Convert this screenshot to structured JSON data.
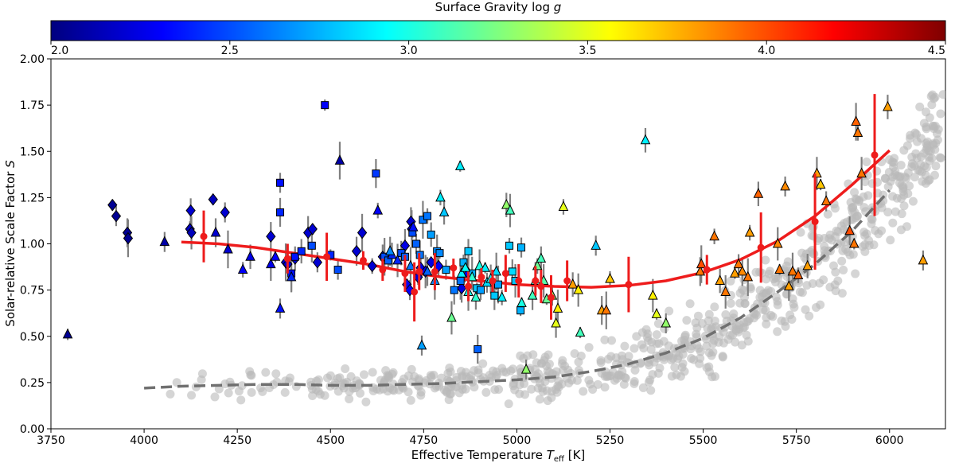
{
  "chart_data": {
    "type": "scatter",
    "xlabel": "Effective Temperature T_eff [K]",
    "ylabel": "Solar-relative Scale Factor S",
    "colorbar_label": "Surface Gravity log g",
    "xlim": [
      3750,
      6150
    ],
    "ylim": [
      0.0,
      2.0
    ],
    "clim": [
      2.0,
      4.5
    ],
    "x_ticks": [
      3750,
      4000,
      4250,
      4500,
      4750,
      5000,
      5250,
      5500,
      5750,
      6000
    ],
    "y_ticks": [
      0.0,
      0.25,
      0.5,
      0.75,
      1.0,
      1.25,
      1.5,
      1.75,
      2.0
    ],
    "c_ticks": [
      2.0,
      2.5,
      3.0,
      3.5,
      4.0,
      4.5
    ],
    "x_tick_labels": [
      "3750",
      "4000",
      "4250",
      "4500",
      "4750",
      "5000",
      "5250",
      "5500",
      "5750",
      "6000"
    ],
    "y_tick_labels": [
      "0.00",
      "0.25",
      "0.50",
      "0.75",
      "1.00",
      "1.25",
      "1.50",
      "1.75",
      "2.00"
    ],
    "c_tick_labels": [
      "2.0",
      "2.5",
      "3.0",
      "3.5",
      "4.0",
      "4.5"
    ],
    "label_parts": {
      "x_main": "Effective Temperature ",
      "x_sym": "T",
      "x_sub": "eff",
      "x_unit": " [K]",
      "y_main": "Solar-relative Scale Factor ",
      "y_sym": "S",
      "c_main": "Surface Gravity log ",
      "c_sym": "g"
    },
    "colors": {
      "fit": "#ee1c1c",
      "binned": "#ee1c1c",
      "background": "#b9b9b9",
      "background_fit": "#707070",
      "errorbar": "#7f7f7f",
      "colormap": [
        "#00007f",
        "#0000ff",
        "#007fff",
        "#00ffff",
        "#7fff7f",
        "#ffff00",
        "#ff7f00",
        "#ff0000",
        "#7f0000"
      ]
    },
    "series": [
      {
        "name": "diamonds",
        "marker": "diamond",
        "points": [
          [
            3915,
            1.21,
            2.05
          ],
          [
            3925,
            1.15,
            2.05
          ],
          [
            3955,
            1.06,
            2.05
          ],
          [
            3957,
            1.03,
            2.05
          ],
          [
            4123,
            1.08,
            2.15
          ],
          [
            4125,
            1.18,
            2.2
          ],
          [
            4127,
            1.06,
            2.15
          ],
          [
            4185,
            1.24,
            2.15
          ],
          [
            4217,
            1.17,
            2.2
          ],
          [
            4340,
            1.04,
            2.2
          ],
          [
            4380,
            0.9,
            2.2
          ],
          [
            4385,
            0.89,
            2.2
          ],
          [
            4405,
            0.92,
            2.2
          ],
          [
            4440,
            1.06,
            2.2
          ],
          [
            4452,
            1.08,
            2.2
          ],
          [
            4465,
            0.9,
            2.2
          ],
          [
            4570,
            0.96,
            2.2
          ],
          [
            4585,
            1.06,
            2.2
          ],
          [
            4612,
            0.88,
            2.2
          ],
          [
            4640,
            0.93,
            2.2
          ],
          [
            4700,
            0.99,
            2.25
          ],
          [
            4705,
            0.78,
            2.3
          ],
          [
            4713,
            0.75,
            2.3
          ],
          [
            4716,
            1.12,
            2.2
          ],
          [
            4718,
            1.08,
            2.2
          ],
          [
            4735,
            0.82,
            2.2
          ],
          [
            4742,
            0.87,
            2.25
          ],
          [
            4755,
            0.85,
            2.25
          ],
          [
            4770,
            0.9,
            2.25
          ],
          [
            4790,
            0.88,
            2.3
          ],
          [
            4852,
            0.76,
            2.25
          ],
          [
            4870,
            0.84,
            2.3
          ]
        ]
      },
      {
        "name": "squares",
        "marker": "square",
        "points": [
          [
            4485,
            1.75,
            2.3
          ],
          [
            4365,
            1.33,
            2.35
          ],
          [
            4365,
            1.17,
            2.4
          ],
          [
            4395,
            0.84,
            2.35
          ],
          [
            4405,
            0.93,
            2.35
          ],
          [
            4422,
            0.96,
            2.4
          ],
          [
            4450,
            0.99,
            2.5
          ],
          [
            4500,
            0.94,
            2.4
          ],
          [
            4520,
            0.86,
            2.5
          ],
          [
            4622,
            1.38,
            2.45
          ],
          [
            4645,
            0.93,
            2.5
          ],
          [
            4655,
            0.91,
            2.55
          ],
          [
            4690,
            0.95,
            2.5
          ],
          [
            4700,
            0.93,
            2.55
          ],
          [
            4720,
            1.06,
            2.5
          ],
          [
            4730,
            1.0,
            2.55
          ],
          [
            4740,
            0.94,
            2.6
          ],
          [
            4748,
            1.13,
            2.6
          ],
          [
            4760,
            1.15,
            2.6
          ],
          [
            4770,
            1.05,
            2.7
          ],
          [
            4786,
            0.96,
            2.65
          ],
          [
            4793,
            0.95,
            2.65
          ],
          [
            4810,
            0.86,
            2.7
          ],
          [
            4832,
            0.75,
            2.6
          ],
          [
            4849,
            0.8,
            2.6
          ],
          [
            4857,
            0.9,
            2.75
          ],
          [
            4870,
            0.96,
            2.8
          ],
          [
            4880,
            0.84,
            2.75
          ],
          [
            4893,
            0.76,
            2.8
          ],
          [
            4903,
            0.75,
            2.7
          ],
          [
            4940,
            0.72,
            2.8
          ],
          [
            4950,
            0.78,
            2.7
          ],
          [
            4980,
            0.99,
            2.8
          ],
          [
            4988,
            0.85,
            2.85
          ],
          [
            4996,
            0.8,
            2.8
          ],
          [
            5010,
            0.64,
            2.75
          ],
          [
            5012,
            0.98,
            2.75
          ],
          [
            4895,
            0.43,
            2.55
          ]
        ]
      },
      {
        "name": "triangles",
        "marker": "triangle",
        "points": [
          [
            3795,
            0.51,
            2.05
          ],
          [
            4055,
            1.01,
            2.1
          ],
          [
            4192,
            1.06,
            2.2
          ],
          [
            4225,
            0.97,
            2.2
          ],
          [
            4265,
            0.86,
            2.3
          ],
          [
            4285,
            0.93,
            2.25
          ],
          [
            4340,
            0.89,
            2.25
          ],
          [
            4352,
            0.93,
            2.3
          ],
          [
            4365,
            0.65,
            2.35
          ],
          [
            4395,
            0.82,
            2.4
          ],
          [
            4525,
            1.45,
            2.1
          ],
          [
            4627,
            1.18,
            2.3
          ],
          [
            4665,
            0.94,
            2.4
          ],
          [
            4680,
            0.91,
            2.4
          ],
          [
            4722,
            1.09,
            2.35
          ],
          [
            4745,
            0.45,
            2.7
          ],
          [
            4760,
            0.85,
            2.55
          ],
          [
            4780,
            0.8,
            2.65
          ],
          [
            4795,
            1.25,
            2.9
          ],
          [
            4805,
            1.17,
            2.8
          ],
          [
            4825,
            0.6,
            3.2
          ],
          [
            4848,
            1.42,
            2.9
          ],
          [
            4852,
            0.84,
            2.9
          ],
          [
            4862,
            0.87,
            2.95
          ],
          [
            4870,
            0.74,
            3.0
          ],
          [
            4880,
            0.82,
            3.05
          ],
          [
            4890,
            0.71,
            3.05
          ],
          [
            4900,
            0.88,
            3.0
          ],
          [
            4915,
            0.87,
            2.9
          ],
          [
            4920,
            0.79,
            2.85
          ],
          [
            4930,
            0.81,
            2.95
          ],
          [
            4945,
            0.85,
            2.85
          ],
          [
            4960,
            0.71,
            2.9
          ],
          [
            4972,
            1.21,
            3.3
          ],
          [
            4982,
            1.18,
            3.1
          ],
          [
            5013,
            0.68,
            3.0
          ],
          [
            5025,
            0.32,
            3.3
          ],
          [
            5042,
            0.72,
            3.1
          ],
          [
            5050,
            0.8,
            3.0
          ],
          [
            5055,
            0.88,
            3.2
          ],
          [
            5065,
            0.92,
            3.1
          ],
          [
            5072,
            0.8,
            3.15
          ],
          [
            5080,
            0.7,
            3.2
          ],
          [
            5095,
            0.72,
            3.3
          ],
          [
            5105,
            0.57,
            3.5
          ],
          [
            5110,
            0.65,
            3.6
          ],
          [
            5125,
            1.2,
            3.5
          ],
          [
            5150,
            0.78,
            3.8
          ],
          [
            5165,
            0.75,
            3.6
          ],
          [
            5170,
            0.52,
            3.1
          ],
          [
            5212,
            0.99,
            2.8
          ],
          [
            5228,
            0.64,
            3.8
          ],
          [
            5240,
            0.64,
            3.9
          ],
          [
            5250,
            0.81,
            3.7
          ],
          [
            5345,
            1.56,
            2.9
          ],
          [
            5365,
            0.72,
            3.6
          ],
          [
            5375,
            0.62,
            3.5
          ],
          [
            5400,
            0.57,
            3.3
          ],
          [
            5492,
            0.85,
            3.9
          ],
          [
            5495,
            0.89,
            4.0
          ],
          [
            5530,
            1.04,
            3.9
          ],
          [
            5545,
            0.8,
            3.8
          ],
          [
            5560,
            0.74,
            3.9
          ],
          [
            5585,
            0.84,
            3.8
          ],
          [
            5595,
            0.89,
            3.9
          ],
          [
            5605,
            0.85,
            3.85
          ],
          [
            5620,
            0.82,
            3.9
          ],
          [
            5625,
            1.06,
            3.8
          ],
          [
            5648,
            1.27,
            3.95
          ],
          [
            5700,
            1.0,
            3.85
          ],
          [
            5705,
            0.86,
            3.9
          ],
          [
            5720,
            1.31,
            3.85
          ],
          [
            5730,
            0.77,
            3.8
          ],
          [
            5740,
            0.85,
            3.9
          ],
          [
            5755,
            0.83,
            3.95
          ],
          [
            5780,
            0.88,
            3.8
          ],
          [
            5805,
            1.38,
            3.8
          ],
          [
            5815,
            1.32,
            3.7
          ],
          [
            5830,
            1.23,
            3.9
          ],
          [
            5893,
            1.07,
            4.0
          ],
          [
            5910,
            1.66,
            3.95
          ],
          [
            5915,
            1.6,
            3.9
          ],
          [
            5995,
            1.74,
            3.8
          ],
          [
            5925,
            1.38,
            3.9
          ],
          [
            5905,
            1.0,
            3.9
          ],
          [
            6090,
            0.91,
            3.8
          ],
          [
            4660,
            0.96,
            2.65
          ],
          [
            4715,
            0.88,
            2.6
          ]
        ]
      }
    ],
    "binned_means": [
      {
        "x": 4160,
        "y": 1.04,
        "err": 0.14
      },
      {
        "x": 4385,
        "y": 0.92,
        "err": 0.08
      },
      {
        "x": 4490,
        "y": 0.93,
        "err": 0.13
      },
      {
        "x": 4588,
        "y": 0.91,
        "err": 0.05
      },
      {
        "x": 4640,
        "y": 0.86,
        "err": 0.06
      },
      {
        "x": 4700,
        "y": 0.84,
        "err": 0.1
      },
      {
        "x": 4725,
        "y": 0.74,
        "err": 0.16
      },
      {
        "x": 4738,
        "y": 0.85,
        "err": 0.1
      },
      {
        "x": 4780,
        "y": 0.85,
        "err": 0.1
      },
      {
        "x": 4830,
        "y": 0.87,
        "err": 0.05
      },
      {
        "x": 4870,
        "y": 0.77,
        "err": 0.08
      },
      {
        "x": 4905,
        "y": 0.82,
        "err": 0.05
      },
      {
        "x": 4935,
        "y": 0.8,
        "err": 0.06
      },
      {
        "x": 4970,
        "y": 0.84,
        "err": 0.1
      },
      {
        "x": 5005,
        "y": 0.8,
        "err": 0.09
      },
      {
        "x": 5050,
        "y": 0.8,
        "err": 0.08
      },
      {
        "x": 5065,
        "y": 0.77,
        "err": 0.09
      },
      {
        "x": 5092,
        "y": 0.71,
        "err": 0.12
      },
      {
        "x": 5135,
        "y": 0.8,
        "err": 0.11
      },
      {
        "x": 5300,
        "y": 0.78,
        "err": 0.15
      },
      {
        "x": 5510,
        "y": 0.86,
        "err": 0.08
      },
      {
        "x": 5655,
        "y": 0.98,
        "err": 0.19
      },
      {
        "x": 5800,
        "y": 1.12,
        "err": 0.26
      },
      {
        "x": 5960,
        "y": 1.48,
        "err": 0.33
      }
    ],
    "fit_curve": {
      "x": [
        4100,
        4200,
        4300,
        4400,
        4500,
        4600,
        4700,
        4800,
        4900,
        5000,
        5100,
        5200,
        5300,
        5400,
        5500,
        5600,
        5700,
        5800,
        5900,
        6000
      ],
      "y": [
        1.01,
        1.0,
        0.98,
        0.95,
        0.92,
        0.89,
        0.85,
        0.82,
        0.8,
        0.78,
        0.77,
        0.765,
        0.775,
        0.8,
        0.845,
        0.915,
        1.015,
        1.15,
        1.32,
        1.505
      ]
    },
    "background_fit_curve": {
      "x": [
        4000,
        4100,
        4200,
        4300,
        4400,
        4500,
        4600,
        4700,
        4800,
        4900,
        5000,
        5100,
        5200,
        5300,
        5400,
        5500,
        5600,
        5700,
        5800,
        5900,
        6000
      ],
      "y": [
        0.22,
        0.23,
        0.235,
        0.24,
        0.24,
        0.235,
        0.235,
        0.24,
        0.245,
        0.255,
        0.265,
        0.28,
        0.31,
        0.35,
        0.41,
        0.49,
        0.6,
        0.74,
        0.89,
        1.07,
        1.29
      ]
    }
  }
}
